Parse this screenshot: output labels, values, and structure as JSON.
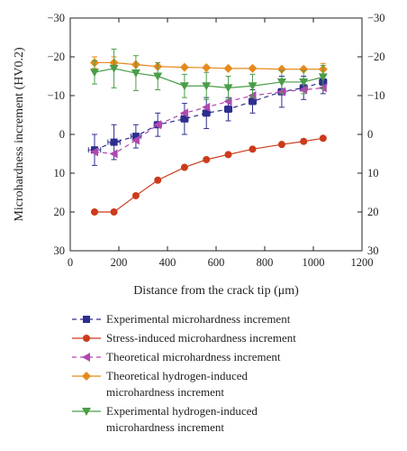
{
  "chart_data": {
    "type": "line",
    "xlabel": "Distance from the crack tip (μm)",
    "ylabel": "Microhardness increment (HV0.2)",
    "xlim": [
      0,
      1200
    ],
    "ylim": [
      30,
      -30
    ],
    "y_inverted": true,
    "secondary_y_axis": "right, mirrors left",
    "x_ticks": [
      "0",
      "200",
      "400",
      "600",
      "800",
      "1000",
      "1200"
    ],
    "y_ticks": [
      "−30",
      "−20",
      "−10",
      "0",
      "10",
      "20",
      "30"
    ],
    "grid": false,
    "legend_position": "below plot",
    "series": [
      {
        "name": "Experimental microhardness increment",
        "color": "#2e2e8f",
        "marker": "square",
        "dash": "5,4",
        "x": [
          100,
          180,
          270,
          360,
          470,
          560,
          650,
          750,
          870,
          960,
          1040
        ],
        "y": [
          4,
          2,
          0.5,
          -2.5,
          -4,
          -5.5,
          -6.5,
          -8.5,
          -11,
          -12,
          -13.5
        ],
        "yerr": [
          4,
          4.5,
          3,
          3,
          4,
          4,
          3,
          3,
          4,
          3,
          3
        ],
        "xerr": [
          25,
          25,
          20,
          15,
          15,
          15,
          15,
          15,
          15,
          15,
          15
        ]
      },
      {
        "name": "Stress-induced microhardness increment",
        "color": "#cc3b1b",
        "marker": "circle",
        "dash": "none",
        "x": [
          100,
          180,
          270,
          360,
          470,
          560,
          650,
          750,
          870,
          960,
          1040
        ],
        "y": [
          20,
          20,
          15.8,
          11.8,
          8.5,
          6.5,
          5.2,
          3.8,
          2.6,
          1.8,
          1
        ],
        "yerr": [],
        "xerr": []
      },
      {
        "name": "Theoretical microhardness increment",
        "color": "#b048b0",
        "marker": "triangle-left",
        "dash": "5,4",
        "x": [
          100,
          180,
          270,
          360,
          470,
          560,
          650,
          750,
          870,
          960,
          1040
        ],
        "y": [
          4.5,
          5,
          1.5,
          -2.5,
          -5.5,
          -7,
          -8.5,
          -10,
          -11,
          -11.5,
          -12
        ],
        "yerr": [],
        "xerr": []
      },
      {
        "name": "Theoretical hydrogen-induced microhardness increment",
        "name_lines": [
          "Theoretical hydrogen-induced",
          "microhardness increment"
        ],
        "color": "#e58a1c",
        "marker": "diamond",
        "dash": "none",
        "x": [
          100,
          180,
          270,
          360,
          470,
          560,
          650,
          750,
          870,
          960,
          1040
        ],
        "y": [
          -18.5,
          -18.5,
          -18,
          -17.5,
          -17.3,
          -17.2,
          -17,
          -17,
          -16.8,
          -16.8,
          -16.8
        ],
        "yerr": [
          1.5,
          1.5,
          0,
          0,
          0,
          0,
          0,
          0,
          0,
          0,
          1.5
        ],
        "xerr": []
      },
      {
        "name": "Experimental hydrogen-induced microhardness increment",
        "name_lines": [
          "Experimental hydrogen-induced",
          "microhardness increment"
        ],
        "color": "#4a9e48",
        "marker": "triangle-down",
        "dash": "none",
        "x": [
          100,
          180,
          270,
          360,
          470,
          560,
          650,
          750,
          870,
          960,
          1040
        ],
        "y": [
          -16,
          -17,
          -15.8,
          -15,
          -12.5,
          -12.5,
          -12,
          -12.5,
          -13.5,
          -13.5,
          -14.8
        ],
        "yerr": [
          3,
          5,
          4.5,
          3.5,
          3,
          3.5,
          3,
          3,
          3,
          3,
          3
        ],
        "xerr": []
      }
    ]
  }
}
